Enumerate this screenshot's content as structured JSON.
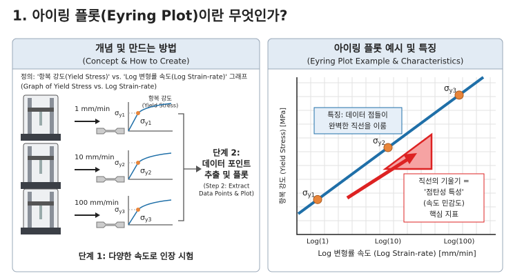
{
  "title": "1. 아이링 플롯(Eyring Plot)이란 무엇인가?",
  "left_panel": {
    "title": "개념 및 만드는 방법",
    "subtitle": "(Concept & How to Create)",
    "definition": [
      "정의: '항복 강도(Yield Stress)' vs. 'Log 변형률 속도(Log Strain-rate)' 그래프",
      "(Graph of Yield Stress vs. Log Strain-rate)"
    ],
    "yield_label": [
      "항복 강도",
      "(Yield Stress)"
    ],
    "tests": [
      {
        "speed": "1 mm/min",
        "axis_label": {
          "symbol": "σ",
          "sub": "y1"
        },
        "point_label": {
          "symbol": "σ",
          "sub": "y1"
        }
      },
      {
        "speed": "10 mm/min",
        "axis_label": {
          "symbol": "σ",
          "sub": "y2"
        },
        "point_label": {
          "symbol": "σ",
          "sub": "y2"
        }
      },
      {
        "speed": "100 mm/min",
        "axis_label": {
          "symbol": "σ",
          "sub": "y3"
        },
        "point_label": {
          "symbol": "σ",
          "sub": "y3"
        }
      }
    ],
    "step2": [
      "단계 2:",
      "데이터 포인트",
      "추출 및 플롯"
    ],
    "step2_en": [
      "(Step 2: Extract",
      "Data Points & Plot)"
    ],
    "step1": "단계 1: 다양한 속도로 인장 시험"
  },
  "right_panel": {
    "title": "아이링 플롯 예시 및 특징",
    "subtitle": "(Eyring Plot Example & Characteristics)",
    "y_label": "항복 강도 (Yield Stress) [MPa]",
    "x_label": "Log 변형률 속도 (Log Strain-rate) [mm/min]",
    "x_ticks": [
      "Log(1)",
      "Log(10)",
      "Log(100)"
    ],
    "points": [
      {
        "symbol": "σ",
        "sub": "y1"
      },
      {
        "symbol": "σ",
        "sub": "y2"
      },
      {
        "symbol": "σ",
        "sub": "y3"
      }
    ],
    "feature": [
      "특징: 데이터 점들이",
      "완벽한 직선을 이룸"
    ],
    "slope_note": [
      "직선의 기울기 =",
      "'점탄성 특성'",
      "(속도 민감도)",
      "핵심 지표"
    ]
  }
}
